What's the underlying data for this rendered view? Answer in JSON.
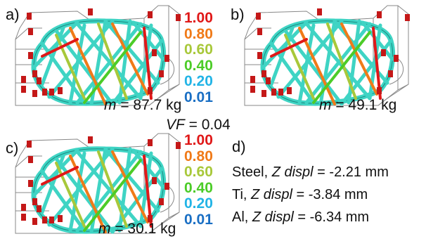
{
  "panels": [
    {
      "id": "a",
      "label": "a)",
      "mass_symbol": "m",
      "mass_text": " = 87.7 kg"
    },
    {
      "id": "b",
      "label": "b)",
      "mass_symbol": "m",
      "mass_text": " = 49.1 kg"
    },
    {
      "id": "c",
      "label": "c)",
      "mass_symbol": "m",
      "mass_text": " = 30.1 kg"
    }
  ],
  "legend": {
    "values": [
      "1.00",
      "0.80",
      "0.60",
      "0.40",
      "0.20",
      "0.01"
    ],
    "colors": [
      "#e01818",
      "#f07a18",
      "#a8c83a",
      "#4ccc28",
      "#22b4e6",
      "#1a6fc4"
    ]
  },
  "volume_fraction": {
    "symbol": "VF",
    "text": " = 0.04"
  },
  "panel_d": {
    "label": "d)",
    "rows": [
      {
        "material": "Steel, ",
        "symbol": "Z displ",
        "text": " = -2.21 mm"
      },
      {
        "material": "Ti, ",
        "symbol": "Z displ",
        "text": " = -3.84 mm"
      },
      {
        "material": "Al, ",
        "symbol": "Z displ",
        "text": " = -6.34 mm"
      }
    ]
  },
  "colors": {
    "lattice": "#3fd4c4",
    "lattice_edge": "#1a8a80",
    "support": "#c41818",
    "frame": "#888888"
  }
}
